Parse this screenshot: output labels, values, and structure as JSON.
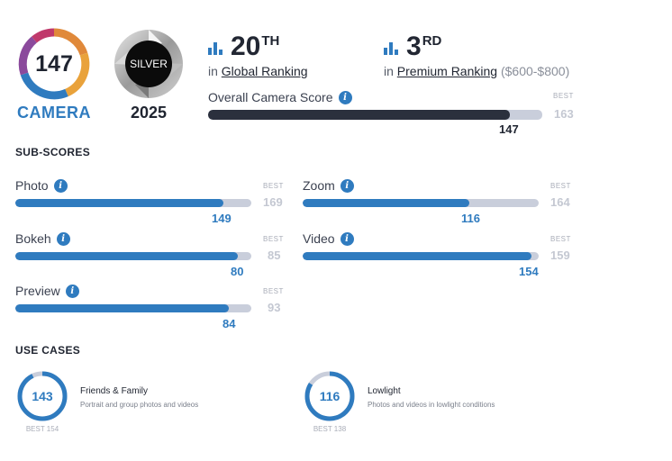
{
  "camera_badge": {
    "score": "147",
    "label": "CAMERA"
  },
  "silver_badge": {
    "label": "SILVER",
    "year": "2025"
  },
  "global_ranking": {
    "rank": "20",
    "suffix": "TH",
    "prefix": "in",
    "link_text": "Global Ranking"
  },
  "premium_ranking": {
    "rank": "3",
    "suffix": "RD",
    "prefix": "in",
    "link_text": "Premium Ranking",
    "range": "($600-$800)"
  },
  "overall": {
    "label": "Overall Camera Score",
    "score": 147,
    "best_label": "BEST",
    "best": 163
  },
  "subscores": {
    "heading": "SUB-SCORES",
    "best_label": "BEST",
    "items": [
      {
        "label": "Photo",
        "score": 149,
        "best": 169
      },
      {
        "label": "Zoom",
        "score": 116,
        "best": 164
      },
      {
        "label": "Bokeh",
        "score": 80,
        "best": 85
      },
      {
        "label": "Video",
        "score": 154,
        "best": 159
      },
      {
        "label": "Preview",
        "score": 84,
        "best": 93
      }
    ]
  },
  "use_cases": {
    "heading": "USE CASES",
    "items": [
      {
        "score": 143,
        "best": 154,
        "best_text": "BEST 154",
        "title": "Friends & Family",
        "desc": "Portrait and group photos and videos"
      },
      {
        "score": 116,
        "best": 138,
        "best_text": "BEST 138",
        "title": "Lowlight",
        "desc": "Photos and videos in lowlight conditions"
      }
    ]
  },
  "colors": {
    "accent": "#2f7bbf",
    "dark_bar": "#2b303d",
    "track": "#c9cedb"
  }
}
